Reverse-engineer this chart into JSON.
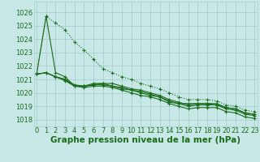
{
  "background_color": "#c8e8e8",
  "grid_color": "#a8cece",
  "line_color": "#1a6b1a",
  "xlabel": "Graphe pression niveau de la mer (hPa)",
  "xlabel_fontsize": 7.5,
  "tick_fontsize": 6,
  "ylim": [
    1017.5,
    1026.8
  ],
  "xlim": [
    -0.3,
    23.3
  ],
  "yticks": [
    1018,
    1019,
    1020,
    1021,
    1022,
    1023,
    1024,
    1025,
    1026
  ],
  "xticks": [
    0,
    1,
    2,
    3,
    4,
    5,
    6,
    7,
    8,
    9,
    10,
    11,
    12,
    13,
    14,
    15,
    16,
    17,
    18,
    19,
    20,
    21,
    22,
    23
  ],
  "series": [
    {
      "y": [
        1021.4,
        1025.7,
        1021.5,
        1021.2,
        1020.5,
        1020.5,
        1020.7,
        1020.7,
        1020.7,
        1020.5,
        1020.3,
        1020.2,
        1020.0,
        1019.8,
        1019.5,
        1019.3,
        1019.1,
        1019.2,
        1019.2,
        1019.2,
        1018.9,
        1018.8,
        1018.5,
        1018.4
      ],
      "linestyle": "solid"
    },
    {
      "y": [
        1021.4,
        1021.5,
        1021.2,
        1021.0,
        1020.6,
        1020.5,
        1020.6,
        1020.7,
        1020.5,
        1020.4,
        1020.2,
        1020.1,
        1019.9,
        1019.7,
        1019.4,
        1019.2,
        1019.2,
        1019.2,
        1019.2,
        1019.1,
        1018.9,
        1018.8,
        1018.5,
        1018.4
      ],
      "linestyle": "solid"
    },
    {
      "y": [
        1021.4,
        1021.5,
        1021.2,
        1021.0,
        1020.5,
        1020.5,
        1020.6,
        1020.6,
        1020.5,
        1020.3,
        1020.2,
        1020.0,
        1019.8,
        1019.7,
        1019.3,
        1019.2,
        1019.0,
        1019.1,
        1019.1,
        1019.1,
        1018.8,
        1018.7,
        1018.4,
        1018.3
      ],
      "linestyle": "solid"
    },
    {
      "y": [
        1021.4,
        1025.7,
        1025.2,
        1024.7,
        1023.8,
        1023.2,
        1022.5,
        1021.8,
        1021.5,
        1021.2,
        1021.0,
        1020.7,
        1020.5,
        1020.3,
        1020.0,
        1019.7,
        1019.5,
        1019.5,
        1019.5,
        1019.4,
        1019.1,
        1019.0,
        1018.7,
        1018.6
      ],
      "linestyle": "dotted"
    },
    {
      "y": [
        1021.4,
        1021.5,
        1021.2,
        1020.9,
        1020.5,
        1020.4,
        1020.5,
        1020.5,
        1020.4,
        1020.2,
        1020.0,
        1019.8,
        1019.7,
        1019.5,
        1019.2,
        1019.0,
        1018.8,
        1018.9,
        1018.9,
        1018.9,
        1018.6,
        1018.5,
        1018.2,
        1018.1
      ],
      "linestyle": "solid"
    }
  ]
}
